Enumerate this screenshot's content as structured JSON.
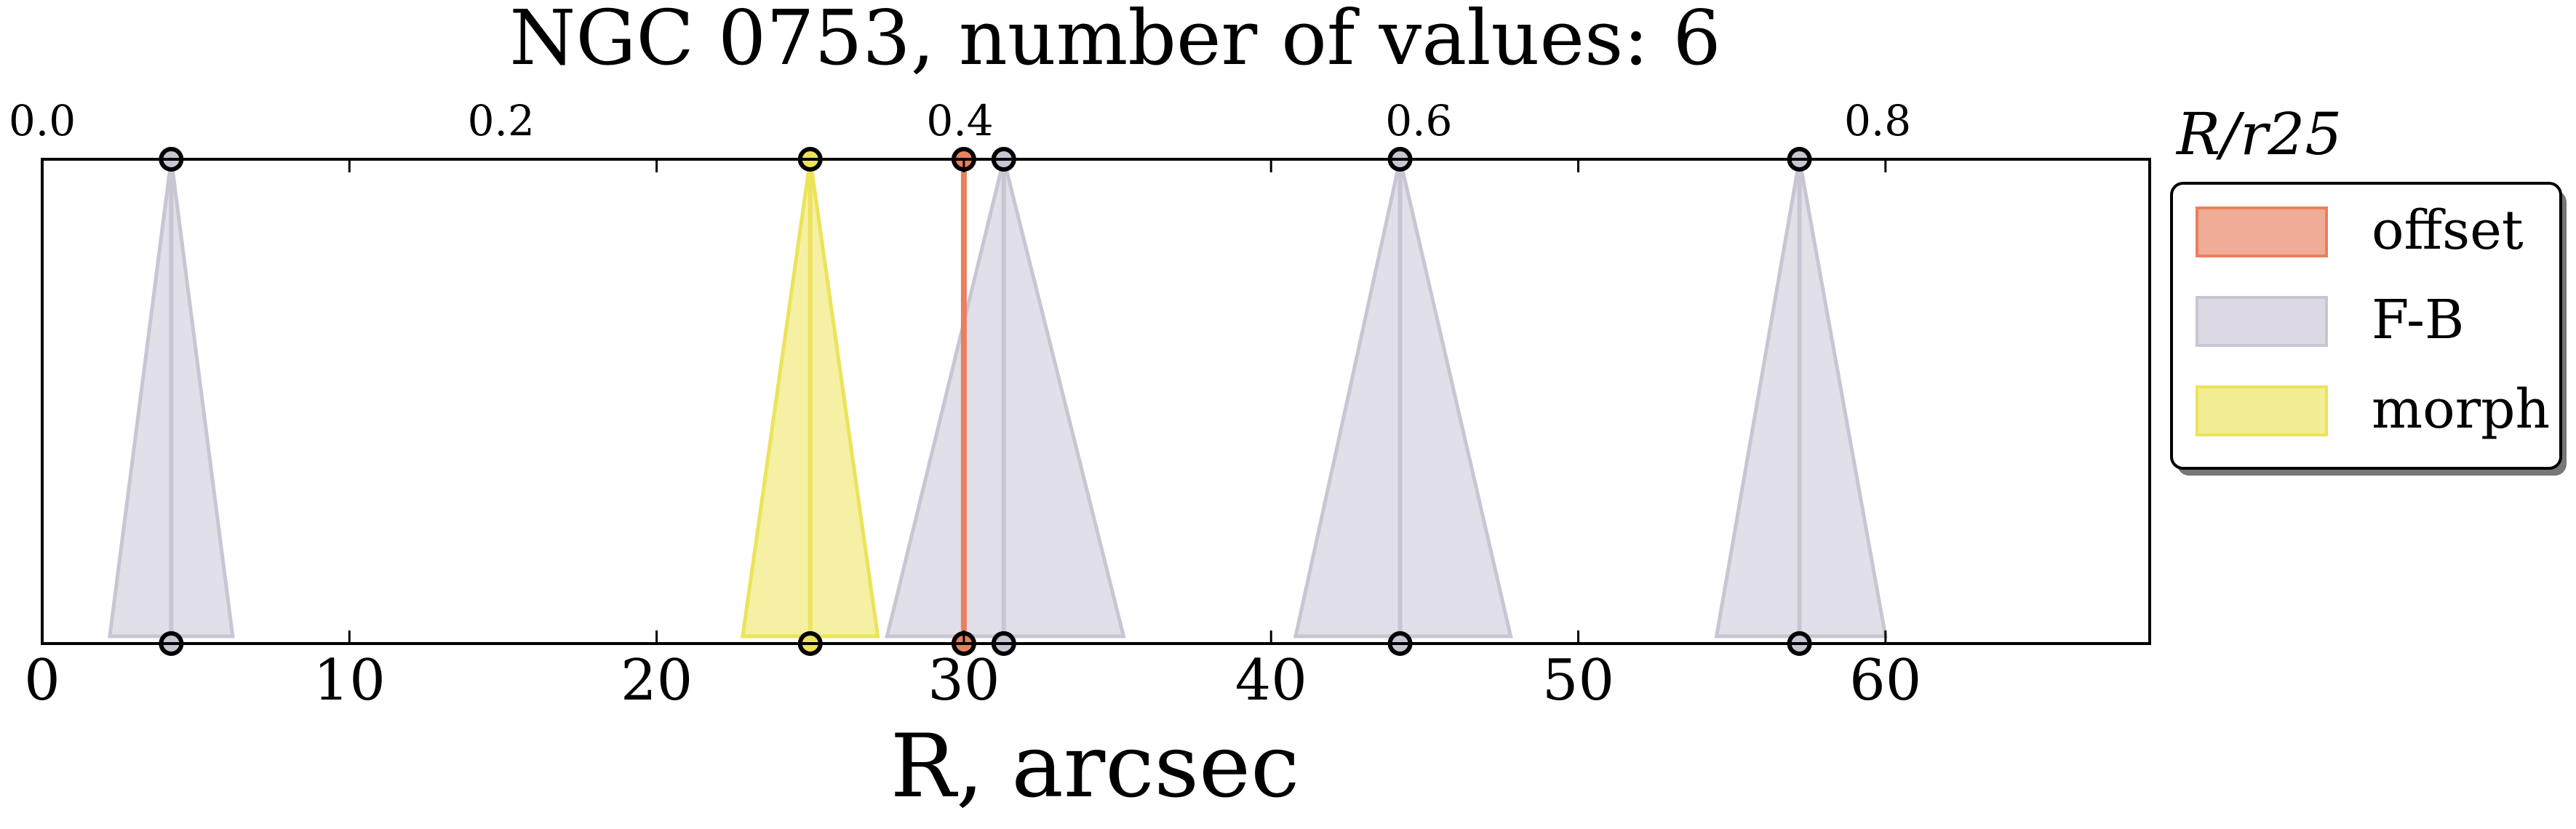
{
  "chart_data": {
    "type": "scatter",
    "title": "NGC 0753, number of values: 6",
    "xlabel": "R, arcsec",
    "xlabel_top": "R/r25",
    "xlim": [
      0,
      68.6
    ],
    "x_ticks": [
      0,
      10,
      20,
      30,
      40,
      50,
      60
    ],
    "x_tick_labels": [
      "0",
      "10",
      "20",
      "30",
      "40",
      "50",
      "60"
    ],
    "top_axis": {
      "units_per_bottom_unit": 0.01339,
      "ticks": [
        0.0,
        0.2,
        0.4,
        0.6,
        0.8
      ],
      "tick_labels": [
        "0.0",
        "0.2",
        "0.4",
        "0.6",
        "0.8"
      ]
    },
    "legend": {
      "placement": "outside-right-top",
      "entries": [
        {
          "label": "offset",
          "color": "#e8805e"
        },
        {
          "label": "F-B",
          "color": "#c9c5d3"
        },
        {
          "label": "morph",
          "color": "#ece35a"
        }
      ]
    },
    "series": [
      {
        "name": "F-B",
        "color": "#c9c5d3",
        "markers": [
          {
            "x": 4.2,
            "lo": 2.2,
            "hi": 6.2
          },
          {
            "x": 31.3,
            "lo": 27.5,
            "hi": 35.2
          },
          {
            "x": 44.2,
            "lo": 40.8,
            "hi": 47.8
          },
          {
            "x": 57.2,
            "lo": 54.5,
            "hi": 60.0
          }
        ]
      },
      {
        "name": "morph",
        "color": "#ece35a",
        "markers": [
          {
            "x": 25.0,
            "lo": 22.8,
            "hi": 27.2
          }
        ]
      },
      {
        "name": "offset",
        "color": "#e8805e",
        "markers": [
          {
            "x": 30.0,
            "lo": 30.0,
            "hi": 30.0
          }
        ]
      }
    ],
    "grid": false
  }
}
